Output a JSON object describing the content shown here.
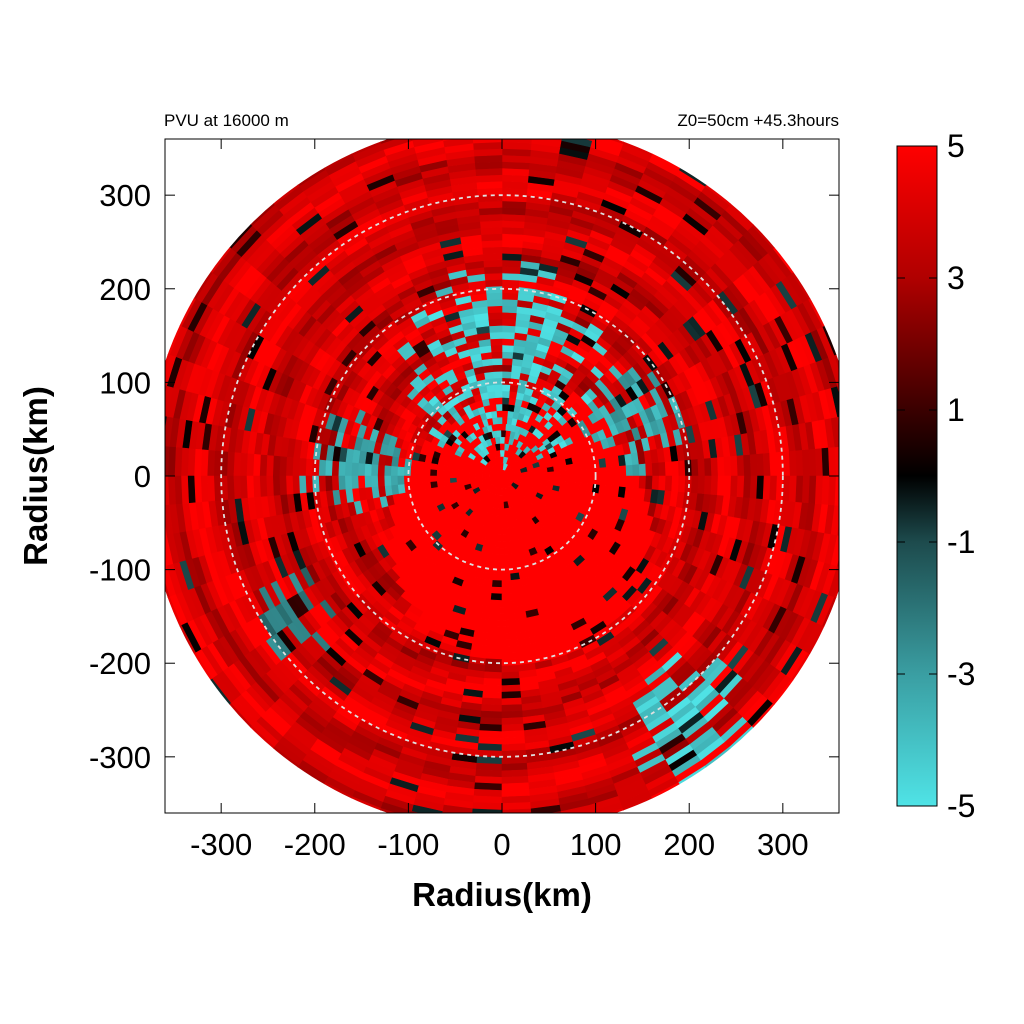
{
  "chart_data": {
    "type": "heatmap",
    "title_left": "PVU at 16000 m",
    "title_right": "Z0=50cm  +45.3hours",
    "xlabel": "Radius(km)",
    "ylabel": "Radius(km)",
    "xlim": [
      -360,
      360
    ],
    "ylim": [
      -360,
      360
    ],
    "x_ticks": [
      -300,
      -200,
      -100,
      0,
      100,
      200,
      300
    ],
    "y_ticks": [
      -300,
      -200,
      -100,
      0,
      100,
      200,
      300
    ],
    "data_max_radius_km": 380,
    "reference_circle_radii_km": [
      100,
      200,
      300
    ],
    "colorbar": {
      "range": [
        -5,
        5
      ],
      "ticks": [
        -5,
        -3,
        -1,
        1,
        3,
        5
      ],
      "colors": [
        {
          "value": -5,
          "color": "#4fe3e6"
        },
        {
          "value": -3,
          "color": "#3a9ea2"
        },
        {
          "value": -1,
          "color": "#1d4b4d"
        },
        {
          "value": 0,
          "color": "#000000"
        },
        {
          "value": 1,
          "color": "#3a0000"
        },
        {
          "value": 3,
          "color": "#b00000"
        },
        {
          "value": 5,
          "color": "#ff0000"
        }
      ]
    },
    "fields": {
      "negative_regions": [
        {
          "name": "cyan-arc-north",
          "center_x": 0,
          "center_y": 120,
          "radius_km": 110,
          "value": -5
        },
        {
          "name": "cyan-patch-west",
          "center_x": -160,
          "center_y": 10,
          "radius_km": 60,
          "value": -4
        },
        {
          "name": "cyan-patch-east",
          "center_x": 140,
          "center_y": 60,
          "radius_km": 55,
          "value": -4
        },
        {
          "name": "cyan-band-southeast",
          "center_x": 210,
          "center_y": -260,
          "radius_km": 70,
          "value": -5
        },
        {
          "name": "cyan-patch-southwest",
          "center_x": -230,
          "center_y": -150,
          "radius_km": 50,
          "value": -3
        }
      ],
      "positive_core": {
        "center_x": 20,
        "center_y": -60,
        "radius_km": 140,
        "value": 5
      }
    }
  }
}
